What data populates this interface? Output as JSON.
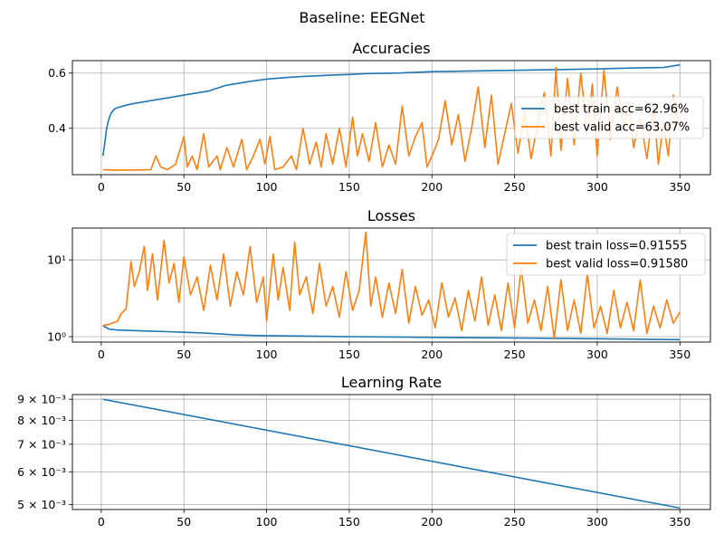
{
  "suptitle": "Baseline: EEGNet",
  "colors": {
    "train": "#1f77b4",
    "valid": "#ff7f0e",
    "grid": "#b0b0b0"
  },
  "chart_data": [
    {
      "type": "line",
      "title": "Accuracies",
      "xlim": [
        -17.45,
        368.45
      ],
      "ylim": [
        0.232,
        0.645
      ],
      "yscale": "linear",
      "xticks": [
        "0",
        "50",
        "100",
        "150",
        "200",
        "250",
        "300",
        "350"
      ],
      "yticks": [
        {
          "value": 0.4,
          "label": "0.4"
        },
        {
          "value": 0.6,
          "label": "0.6"
        }
      ],
      "grid": true,
      "legend": "right",
      "series": [
        {
          "name": "best train acc=62.96%",
          "points": [
            [
              1,
              0.3
            ],
            [
              2,
              0.34
            ],
            [
              3,
              0.39
            ],
            [
              4,
              0.42
            ],
            [
              5,
              0.44
            ],
            [
              6,
              0.455
            ],
            [
              8,
              0.47
            ],
            [
              10,
              0.475
            ],
            [
              13,
              0.48
            ],
            [
              16,
              0.485
            ],
            [
              20,
              0.49
            ],
            [
              25,
              0.495
            ],
            [
              30,
              0.5
            ],
            [
              35,
              0.505
            ],
            [
              40,
              0.51
            ],
            [
              45,
              0.515
            ],
            [
              50,
              0.52
            ],
            [
              55,
              0.525
            ],
            [
              60,
              0.53
            ],
            [
              65,
              0.535
            ],
            [
              70,
              0.545
            ],
            [
              75,
              0.555
            ],
            [
              80,
              0.56
            ],
            [
              85,
              0.565
            ],
            [
              90,
              0.57
            ],
            [
              100,
              0.578
            ],
            [
              110,
              0.583
            ],
            [
              120,
              0.587
            ],
            [
              130,
              0.59
            ],
            [
              140,
              0.593
            ],
            [
              150,
              0.595
            ],
            [
              160,
              0.598
            ],
            [
              180,
              0.6
            ],
            [
              200,
              0.605
            ],
            [
              220,
              0.607
            ],
            [
              250,
              0.61
            ],
            [
              280,
              0.613
            ],
            [
              300,
              0.615
            ],
            [
              320,
              0.618
            ],
            [
              340,
              0.62
            ],
            [
              350,
              0.6296
            ]
          ]
        },
        {
          "name": "best valid acc=63.07%",
          "points": [
            [
              1,
              0.25
            ],
            [
              10,
              0.248
            ],
            [
              20,
              0.249
            ],
            [
              30,
              0.25
            ],
            [
              33,
              0.3
            ],
            [
              36,
              0.26
            ],
            [
              40,
              0.25
            ],
            [
              45,
              0.27
            ],
            [
              50,
              0.37
            ],
            [
              52,
              0.26
            ],
            [
              55,
              0.3
            ],
            [
              58,
              0.25
            ],
            [
              62,
              0.38
            ],
            [
              65,
              0.26
            ],
            [
              70,
              0.3
            ],
            [
              72,
              0.25
            ],
            [
              76,
              0.33
            ],
            [
              80,
              0.26
            ],
            [
              85,
              0.36
            ],
            [
              88,
              0.25
            ],
            [
              92,
              0.3
            ],
            [
              96,
              0.36
            ],
            [
              99,
              0.27
            ],
            [
              102,
              0.37
            ],
            [
              105,
              0.25
            ],
            [
              110,
              0.26
            ],
            [
              115,
              0.3
            ],
            [
              118,
              0.25
            ],
            [
              122,
              0.4
            ],
            [
              126,
              0.27
            ],
            [
              130,
              0.35
            ],
            [
              133,
              0.26
            ],
            [
              136,
              0.38
            ],
            [
              140,
              0.27
            ],
            [
              144,
              0.4
            ],
            [
              148,
              0.26
            ],
            [
              152,
              0.44
            ],
            [
              155,
              0.3
            ],
            [
              158,
              0.38
            ],
            [
              162,
              0.28
            ],
            [
              166,
              0.42
            ],
            [
              170,
              0.26
            ],
            [
              174,
              0.34
            ],
            [
              178,
              0.27
            ],
            [
              182,
              0.48
            ],
            [
              186,
              0.3
            ],
            [
              190,
              0.37
            ],
            [
              194,
              0.42
            ],
            [
              197,
              0.26
            ],
            [
              200,
              0.3
            ],
            [
              204,
              0.36
            ],
            [
              208,
              0.5
            ],
            [
              212,
              0.34
            ],
            [
              216,
              0.45
            ],
            [
              220,
              0.28
            ],
            [
              224,
              0.4
            ],
            [
              228,
              0.55
            ],
            [
              232,
              0.33
            ],
            [
              236,
              0.52
            ],
            [
              240,
              0.27
            ],
            [
              244,
              0.38
            ],
            [
              248,
              0.49
            ],
            [
              252,
              0.31
            ],
            [
              256,
              0.46
            ],
            [
              260,
              0.29
            ],
            [
              264,
              0.42
            ],
            [
              268,
              0.53
            ],
            [
              272,
              0.3
            ],
            [
              275,
              0.62
            ],
            [
              278,
              0.32
            ],
            [
              282,
              0.58
            ],
            [
              286,
              0.34
            ],
            [
              290,
              0.6
            ],
            [
              294,
              0.38
            ],
            [
              297,
              0.56
            ],
            [
              300,
              0.3
            ],
            [
              304,
              0.61
            ],
            [
              308,
              0.36
            ],
            [
              312,
              0.55
            ],
            [
              316,
              0.4
            ],
            [
              319,
              0.5
            ],
            [
              322,
              0.33
            ],
            [
              326,
              0.44
            ],
            [
              330,
              0.29
            ],
            [
              334,
              0.48
            ],
            [
              337,
              0.27
            ],
            [
              340,
              0.42
            ],
            [
              343,
              0.3
            ],
            [
              346,
              0.52
            ],
            [
              350,
              0.3907
            ]
          ]
        }
      ]
    },
    {
      "type": "line",
      "title": "Losses",
      "xlim": [
        -17.45,
        368.45
      ],
      "ylim": [
        0.85,
        26
      ],
      "yscale": "log",
      "xticks": [
        "0",
        "50",
        "100",
        "150",
        "200",
        "250",
        "300",
        "350"
      ],
      "yticks": [
        {
          "value": 1,
          "label": "10⁰"
        },
        {
          "value": 10,
          "label": "10¹"
        }
      ],
      "grid": true,
      "legend": "upper right",
      "series": [
        {
          "name": "best train loss=0.91555",
          "points": [
            [
              1,
              1.38
            ],
            [
              5,
              1.25
            ],
            [
              10,
              1.22
            ],
            [
              20,
              1.2
            ],
            [
              30,
              1.18
            ],
            [
              40,
              1.16
            ],
            [
              50,
              1.14
            ],
            [
              60,
              1.12
            ],
            [
              70,
              1.09
            ],
            [
              80,
              1.06
            ],
            [
              90,
              1.04
            ],
            [
              100,
              1.03
            ],
            [
              120,
              1.02
            ],
            [
              150,
              1.0
            ],
            [
              180,
              0.99
            ],
            [
              200,
              0.98
            ],
            [
              250,
              0.96
            ],
            [
              300,
              0.94
            ],
            [
              350,
              0.91555
            ]
          ]
        },
        {
          "name": "best valid loss=0.91580",
          "points": [
            [
              1,
              1.4
            ],
            [
              5,
              1.45
            ],
            [
              10,
              1.6
            ],
            [
              12,
              2.0
            ],
            [
              15,
              2.3
            ],
            [
              18,
              9.5
            ],
            [
              20,
              4.5
            ],
            [
              23,
              7.0
            ],
            [
              26,
              15
            ],
            [
              28,
              4.0
            ],
            [
              31,
              12
            ],
            [
              34,
              3.0
            ],
            [
              38,
              18
            ],
            [
              41,
              5.0
            ],
            [
              44,
              9.0
            ],
            [
              47,
              2.8
            ],
            [
              50,
              11
            ],
            [
              54,
              3.5
            ],
            [
              58,
              6.0
            ],
            [
              62,
              2.2
            ],
            [
              66,
              8.5
            ],
            [
              70,
              3.0
            ],
            [
              74,
              12
            ],
            [
              78,
              2.5
            ],
            [
              82,
              7.0
            ],
            [
              86,
              3.5
            ],
            [
              90,
              15
            ],
            [
              94,
              2.8
            ],
            [
              98,
              6.0
            ],
            [
              100,
              1.6
            ],
            [
              104,
              12
            ],
            [
              107,
              3.0
            ],
            [
              110,
              8.0
            ],
            [
              114,
              2.2
            ],
            [
              117,
              17
            ],
            [
              120,
              3.5
            ],
            [
              124,
              6.0
            ],
            [
              128,
              2.0
            ],
            [
              132,
              9.0
            ],
            [
              136,
              2.5
            ],
            [
              140,
              4.5
            ],
            [
              144,
              1.8
            ],
            [
              148,
              7.0
            ],
            [
              152,
              2.2
            ],
            [
              156,
              4.0
            ],
            [
              160,
              23
            ],
            [
              163,
              2.5
            ],
            [
              166,
              6.0
            ],
            [
              170,
              1.8
            ],
            [
              174,
              5.0
            ],
            [
              178,
              2.0
            ],
            [
              182,
              7.5
            ],
            [
              186,
              1.5
            ],
            [
              190,
              4.5
            ],
            [
              194,
              1.9
            ],
            [
              198,
              3.0
            ],
            [
              202,
              1.3
            ],
            [
              206,
              5.0
            ],
            [
              210,
              1.8
            ],
            [
              214,
              3.2
            ],
            [
              218,
              1.2
            ],
            [
              222,
              4.0
            ],
            [
              226,
              1.6
            ],
            [
              230,
              6.0
            ],
            [
              234,
              1.4
            ],
            [
              238,
              3.5
            ],
            [
              242,
              1.2
            ],
            [
              246,
              5.0
            ],
            [
              250,
              1.3
            ],
            [
              254,
              8.0
            ],
            [
              258,
              1.5
            ],
            [
              262,
              3.0
            ],
            [
              266,
              1.2
            ],
            [
              270,
              4.5
            ],
            [
              274,
              0.95
            ],
            [
              278,
              5.5
            ],
            [
              282,
              1.2
            ],
            [
              286,
              3.0
            ],
            [
              290,
              1.1
            ],
            [
              294,
              6.5
            ],
            [
              298,
              1.3
            ],
            [
              302,
              2.5
            ],
            [
              306,
              1.1
            ],
            [
              310,
              4.0
            ],
            [
              314,
              1.3
            ],
            [
              318,
              2.8
            ],
            [
              322,
              1.2
            ],
            [
              326,
              5.5
            ],
            [
              330,
              1.1
            ],
            [
              334,
              2.5
            ],
            [
              338,
              1.3
            ],
            [
              342,
              3.0
            ],
            [
              346,
              1.5
            ],
            [
              350,
              2.1
            ]
          ]
        }
      ]
    },
    {
      "type": "line",
      "title": "Learning Rate",
      "xlim": [
        -17.45,
        368.45
      ],
      "ylim": [
        0.00486,
        0.00924
      ],
      "yscale": "log",
      "xticks": [
        "0",
        "50",
        "100",
        "150",
        "200",
        "250",
        "300",
        "350"
      ],
      "yticks": [
        {
          "value": 0.005,
          "label": "5 × 10⁻³"
        },
        {
          "value": 0.006,
          "label": "6 × 10⁻³"
        },
        {
          "value": 0.007,
          "label": "7 × 10⁻³"
        },
        {
          "value": 0.008,
          "label": "8 × 10⁻³"
        },
        {
          "value": 0.009,
          "label": "9 × 10⁻³"
        }
      ],
      "grid": true,
      "legend": "none",
      "series": [
        {
          "points": [
            [
              1,
              0.009
            ],
            [
              350,
              0.0049
            ]
          ]
        }
      ]
    }
  ]
}
